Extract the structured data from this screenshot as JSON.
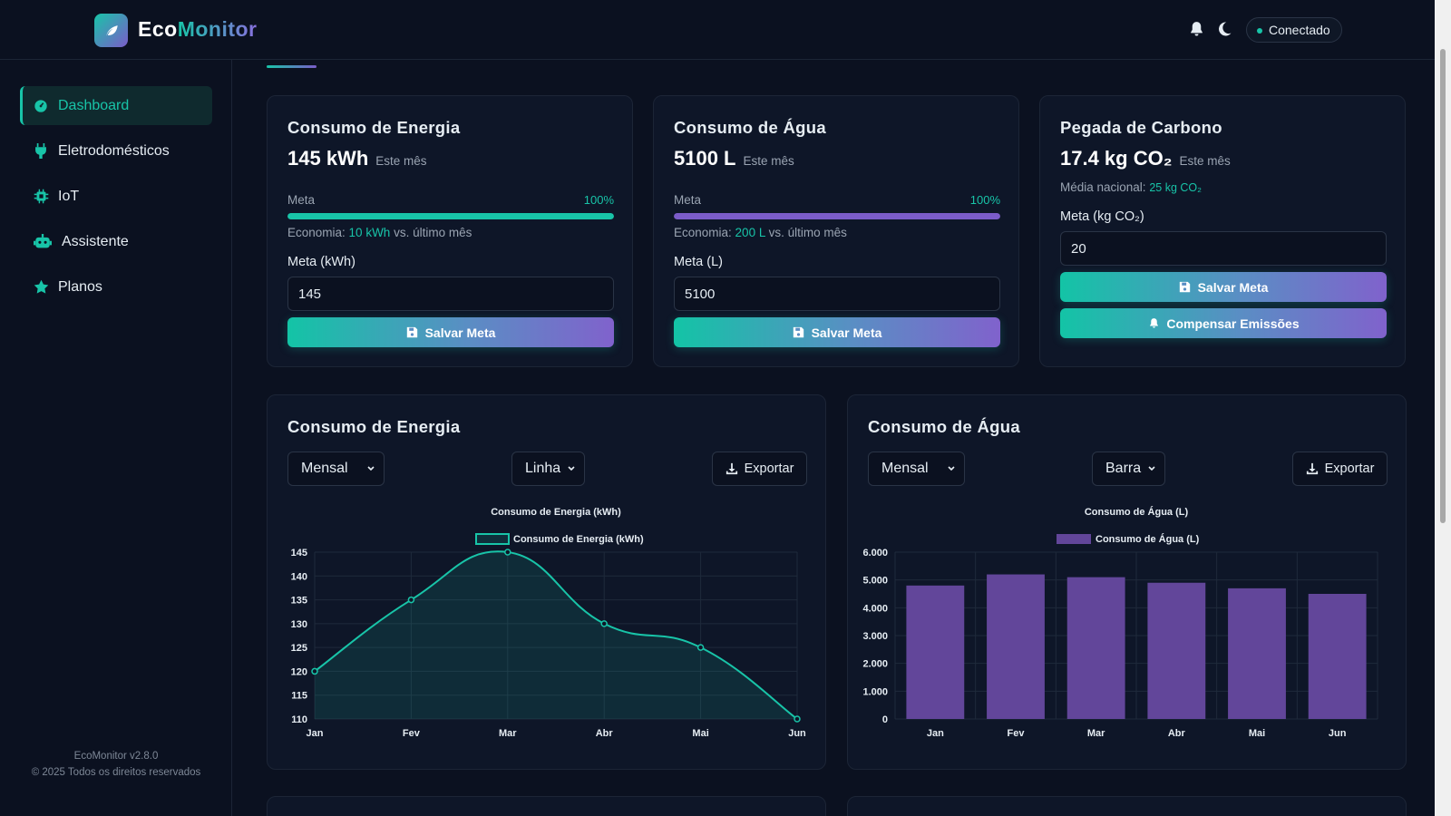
{
  "app": {
    "logo_part1": "Eco",
    "logo_part2": "Monitor",
    "status": "Conectado"
  },
  "sidebar": {
    "items": [
      {
        "label": "Dashboard",
        "icon": "gauge-icon"
      },
      {
        "label": "Eletrodomésticos",
        "icon": "plug-icon"
      },
      {
        "label": "IoT",
        "icon": "chip-icon"
      },
      {
        "label": "Assistente",
        "icon": "robot-icon"
      },
      {
        "label": "Planos",
        "icon": "star-icon"
      }
    ],
    "version": "EcoMonitor v2.8.0",
    "copyright": "© 2025 Todos os direitos reservados"
  },
  "energy_card": {
    "title": "Consumo de Energia",
    "value": "145 kWh",
    "period": "Este mês",
    "meta_label": "Meta",
    "meta_pct": "100%",
    "progress": 1.0,
    "econ_prefix": "Economia: ",
    "econ_value": "10 kWh",
    "econ_suffix": " vs. último mês",
    "input_label": "Meta (kWh)",
    "input_value": "145",
    "save_label": "Salvar Meta"
  },
  "water_card": {
    "title": "Consumo de Água",
    "value": "5100 L",
    "period": "Este mês",
    "meta_label": "Meta",
    "meta_pct": "100%",
    "progress": 1.0,
    "econ_prefix": "Economia: ",
    "econ_value": "200 L",
    "econ_suffix": " vs. último mês",
    "input_label": "Meta (L)",
    "input_value": "5100",
    "save_label": "Salvar Meta"
  },
  "carbon_card": {
    "title": "Pegada de Carbono",
    "value": "17.4 kg CO₂",
    "period": "Este mês",
    "avg_prefix": "Média nacional: ",
    "avg_value": "25 kg CO₂",
    "input_label": "Meta (kg CO₂)",
    "input_value": "20",
    "save_label": "Salvar Meta",
    "offset_label": "Compensar Emissões"
  },
  "energy_chart_panel": {
    "title": "Consumo de Energia",
    "period_select": "Mensal",
    "type_select": "Linha",
    "export_label": "Exportar"
  },
  "water_chart_panel": {
    "title": "Consumo de Água",
    "period_select": "Mensal",
    "type_select": "Barra",
    "export_label": "Exportar"
  },
  "colors": {
    "accent": "#18c4a8",
    "purple": "#7b5cc9",
    "bar": "#62469a"
  },
  "chart_data": [
    {
      "type": "line",
      "title": "Consumo de Energia (kWh)",
      "legend": "Consumo de Energia (kWh)",
      "categories": [
        "Jan",
        "Fev",
        "Mar",
        "Abr",
        "Mai",
        "Jun"
      ],
      "values": [
        120,
        135,
        145,
        130,
        125,
        110
      ],
      "ylim": [
        110,
        145
      ],
      "yticks": [
        "145",
        "140",
        "135",
        "130",
        "125",
        "120",
        "115",
        "110"
      ],
      "ytick_values": [
        145,
        140,
        135,
        130,
        125,
        120,
        115,
        110
      ]
    },
    {
      "type": "bar",
      "title": "Consumo de Água (L)",
      "legend": "Consumo de Água (L)",
      "categories": [
        "Jan",
        "Fev",
        "Mar",
        "Abr",
        "Mai",
        "Jun"
      ],
      "values": [
        4800,
        5200,
        5100,
        4900,
        4700,
        4500
      ],
      "ylim": [
        0,
        6000
      ],
      "yticks": [
        "6.000",
        "5.000",
        "4.000",
        "3.000",
        "2.000",
        "1.000",
        "0"
      ],
      "ytick_values": [
        6000,
        5000,
        4000,
        3000,
        2000,
        1000,
        0
      ]
    }
  ]
}
